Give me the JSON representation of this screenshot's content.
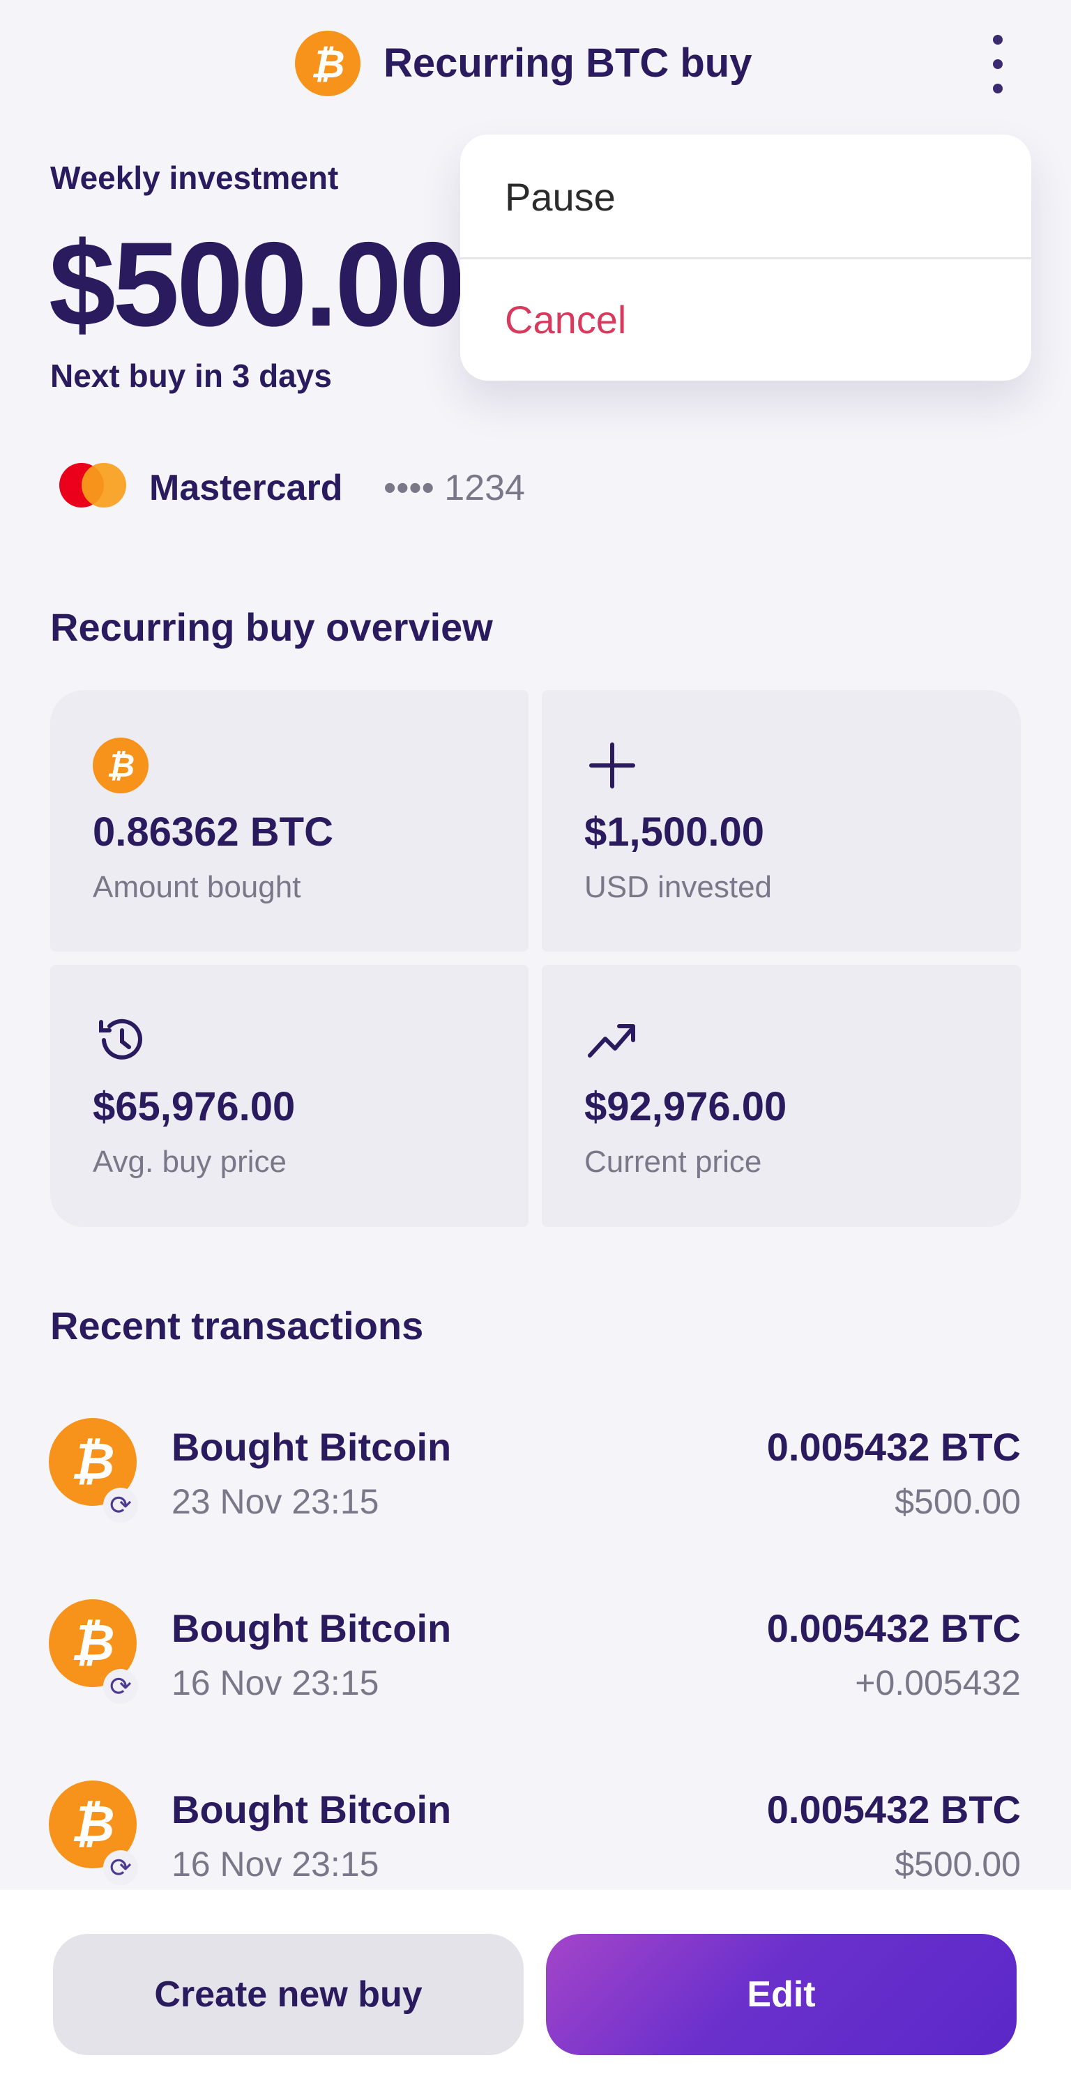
{
  "header": {
    "title": "Recurring BTC buy",
    "icon": "bitcoin-icon",
    "menu_icon": "kebab-icon"
  },
  "menu": {
    "items": [
      {
        "label": "Pause",
        "color": "#2b2b2b"
      },
      {
        "label": "Cancel",
        "color": "#d83a5e"
      }
    ]
  },
  "investment": {
    "label": "Weekly investment",
    "amount": "$500.00",
    "next_buy": "Next buy in 3 days"
  },
  "payment": {
    "card_name": "Mastercard",
    "masked": "•••• 1234"
  },
  "overview": {
    "title": "Recurring buy overview",
    "cards": [
      {
        "icon": "bitcoin-icon",
        "value": "0.86362 BTC",
        "label": "Amount bought"
      },
      {
        "icon": "plus-icon",
        "value": "$1,500.00",
        "label": "USD invested"
      },
      {
        "icon": "history-icon",
        "value": "$65,976.00",
        "label": "Avg. buy price"
      },
      {
        "icon": "trending-up-icon",
        "value": "$92,976.00",
        "label": "Current price"
      }
    ]
  },
  "transactions": {
    "title": "Recent transactions",
    "items": [
      {
        "title": "Bought Bitcoin",
        "date": "23 Nov 23:15",
        "amount": "0.005432 BTC",
        "sub": "$500.00"
      },
      {
        "title": "Bought Bitcoin",
        "date": "16 Nov 23:15",
        "amount": "0.005432 BTC",
        "sub": "+0.005432"
      },
      {
        "title": "Bought Bitcoin",
        "date": "16 Nov 23:15",
        "amount": "0.005432 BTC",
        "sub": "$500.00"
      }
    ]
  },
  "actions": {
    "secondary": "Create new buy",
    "primary": "Edit"
  },
  "colors": {
    "text": "#2a1a5e",
    "bitcoin": "#f7931a",
    "background": "#f5f4f9",
    "primary_gradient_start": "#a445c9",
    "primary_gradient_end": "#5a28c8",
    "danger": "#d83a5e"
  }
}
